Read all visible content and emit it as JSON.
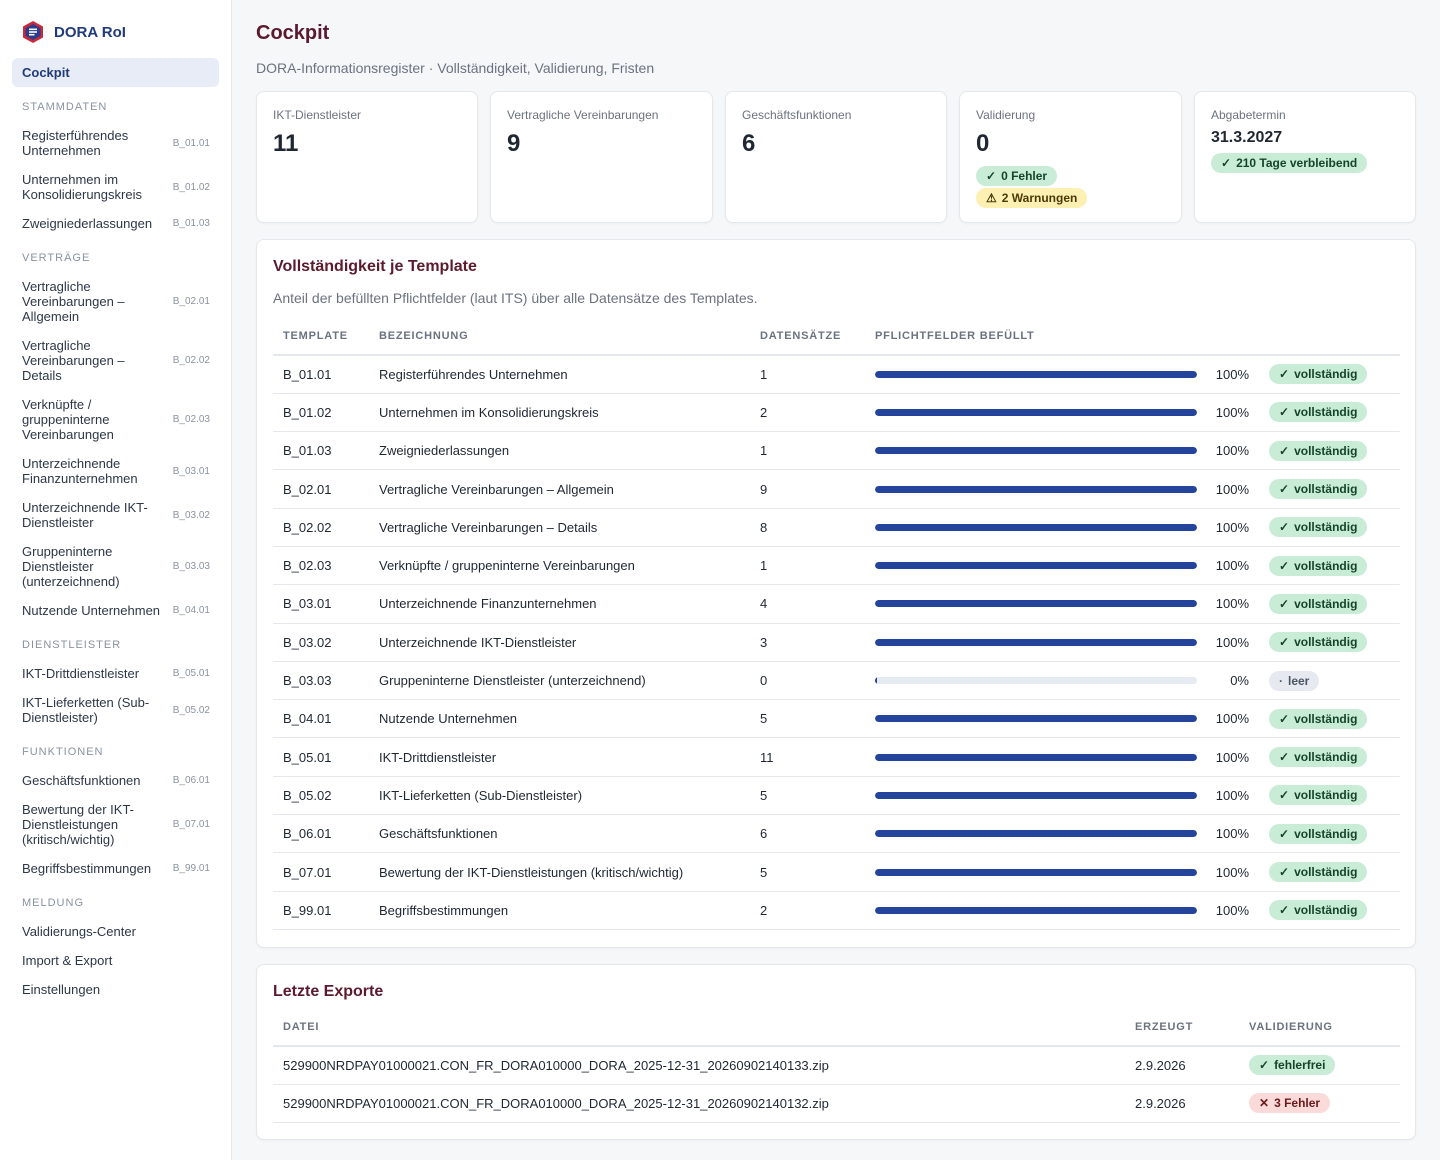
{
  "app": {
    "name": "DORA RoI"
  },
  "sidebar": {
    "active": "Cockpit",
    "sections": [
      {
        "title": "STAMMDATEN",
        "items": [
          {
            "label": "Registerführendes Unternehmen",
            "code": "B_01.01"
          },
          {
            "label": "Unternehmen im Konsolidierungskreis",
            "code": "B_01.02"
          },
          {
            "label": "Zweigniederlassungen",
            "code": "B_01.03"
          }
        ]
      },
      {
        "title": "VERTRÄGE",
        "items": [
          {
            "label": "Vertragliche Vereinbarungen – Allgemein",
            "code": "B_02.01"
          },
          {
            "label": "Vertragliche Vereinbarungen – Details",
            "code": "B_02.02"
          },
          {
            "label": "Verknüpfte / gruppeninterne Vereinbarungen",
            "code": "B_02.03"
          },
          {
            "label": "Unterzeichnende Finanzunternehmen",
            "code": "B_03.01"
          },
          {
            "label": "Unterzeichnende IKT-Dienstleister",
            "code": "B_03.02"
          },
          {
            "label": "Gruppeninterne Dienstleister (unterzeichnend)",
            "code": "B_03.03"
          },
          {
            "label": "Nutzende Unternehmen",
            "code": "B_04.01"
          }
        ]
      },
      {
        "title": "DIENSTLEISTER",
        "items": [
          {
            "label": "IKT-Drittdienstleister",
            "code": "B_05.01"
          },
          {
            "label": "IKT-Lieferketten (Sub-Dienstleister)",
            "code": "B_05.02"
          }
        ]
      },
      {
        "title": "FUNKTIONEN",
        "items": [
          {
            "label": "Geschäftsfunktionen",
            "code": "B_06.01"
          },
          {
            "label": "Bewertung der IKT-Dienstleistungen (kritisch/wichtig)",
            "code": "B_07.01"
          },
          {
            "label": "Begriffsbestimmungen",
            "code": "B_99.01"
          }
        ]
      },
      {
        "title": "MELDUNG",
        "items": [
          {
            "label": "Validierungs-Center",
            "code": ""
          },
          {
            "label": "Import & Export",
            "code": ""
          },
          {
            "label": "Einstellungen",
            "code": ""
          }
        ]
      }
    ]
  },
  "header": {
    "title": "Cockpit",
    "subtitle": "DORA-Informationsregister · Vollständigkeit, Validierung, Fristen"
  },
  "stats": {
    "ikt": {
      "label": "IKT-Dienstleister",
      "value": "11"
    },
    "vertraege": {
      "label": "Vertragliche Vereinbarungen",
      "value": "9"
    },
    "funktionen": {
      "label": "Geschäftsfunktionen",
      "value": "6"
    },
    "validierung": {
      "label": "Validierung",
      "value": "0",
      "errors": "0 Fehler",
      "warnings": "2 Warnungen"
    },
    "abgabe": {
      "label": "Abgabetermin",
      "date": "31.3.2027",
      "remaining": "210 Tage verbleibend"
    }
  },
  "completeness": {
    "title": "Vollständigkeit je Template",
    "description": "Anteil der befüllten Pflichtfelder (laut ITS) über alle Datensätze des Templates.",
    "columns": [
      "TEMPLATE",
      "BEZEICHNUNG",
      "DATENSÄTZE",
      "PFLICHTFELDER BEFÜLLT"
    ],
    "rows": [
      {
        "template": "B_01.01",
        "name": "Registerführendes Unternehmen",
        "count": "1",
        "percent": 100,
        "percent_label": "100%",
        "status": "vollständig"
      },
      {
        "template": "B_01.02",
        "name": "Unternehmen im Konsolidierungskreis",
        "count": "2",
        "percent": 100,
        "percent_label": "100%",
        "status": "vollständig"
      },
      {
        "template": "B_01.03",
        "name": "Zweigniederlassungen",
        "count": "1",
        "percent": 100,
        "percent_label": "100%",
        "status": "vollständig"
      },
      {
        "template": "B_02.01",
        "name": "Vertragliche Vereinbarungen – Allgemein",
        "count": "9",
        "percent": 100,
        "percent_label": "100%",
        "status": "vollständig"
      },
      {
        "template": "B_02.02",
        "name": "Vertragliche Vereinbarungen – Details",
        "count": "8",
        "percent": 100,
        "percent_label": "100%",
        "status": "vollständig"
      },
      {
        "template": "B_02.03",
        "name": "Verknüpfte / gruppeninterne Vereinbarungen",
        "count": "1",
        "percent": 100,
        "percent_label": "100%",
        "status": "vollständig"
      },
      {
        "template": "B_03.01",
        "name": "Unterzeichnende Finanzunternehmen",
        "count": "4",
        "percent": 100,
        "percent_label": "100%",
        "status": "vollständig"
      },
      {
        "template": "B_03.02",
        "name": "Unterzeichnende IKT-Dienstleister",
        "count": "3",
        "percent": 100,
        "percent_label": "100%",
        "status": "vollständig"
      },
      {
        "template": "B_03.03",
        "name": "Gruppeninterne Dienstleister (unterzeichnend)",
        "count": "0",
        "percent": 0,
        "percent_label": "0%",
        "status": "leer"
      },
      {
        "template": "B_04.01",
        "name": "Nutzende Unternehmen",
        "count": "5",
        "percent": 100,
        "percent_label": "100%",
        "status": "vollständig"
      },
      {
        "template": "B_05.01",
        "name": "IKT-Drittdienstleister",
        "count": "11",
        "percent": 100,
        "percent_label": "100%",
        "status": "vollständig"
      },
      {
        "template": "B_05.02",
        "name": "IKT-Lieferketten (Sub-Dienstleister)",
        "count": "5",
        "percent": 100,
        "percent_label": "100%",
        "status": "vollständig"
      },
      {
        "template": "B_06.01",
        "name": "Geschäftsfunktionen",
        "count": "6",
        "percent": 100,
        "percent_label": "100%",
        "status": "vollständig"
      },
      {
        "template": "B_07.01",
        "name": "Bewertung der IKT-Dienstleistungen (kritisch/wichtig)",
        "count": "5",
        "percent": 100,
        "percent_label": "100%",
        "status": "vollständig"
      },
      {
        "template": "B_99.01",
        "name": "Begriffsbestimmungen",
        "count": "2",
        "percent": 100,
        "percent_label": "100%",
        "status": "vollständig"
      }
    ]
  },
  "exports": {
    "title": "Letzte Exporte",
    "columns": [
      "DATEI",
      "ERZEUGT",
      "VALIDIERUNG"
    ],
    "rows": [
      {
        "file": "529900NRDPAY01000021.CON_FR_DORA010000_DORA_2025-12-31_20260902140133.zip",
        "created": "2.9.2026",
        "status": "fehlerfrei",
        "status_type": "ok"
      },
      {
        "file": "529900NRDPAY01000021.CON_FR_DORA010000_DORA_2025-12-31_20260902140132.zip",
        "created": "2.9.2026",
        "status": "3 Fehler",
        "status_type": "error"
      }
    ]
  },
  "colors": {
    "brand": "#1f3b7a",
    "title": "#5c1a2e",
    "bar": "#23449a",
    "success_bg": "#c9ecd6",
    "warning_bg": "#fdf0b2",
    "error_bg": "#fbdada"
  }
}
